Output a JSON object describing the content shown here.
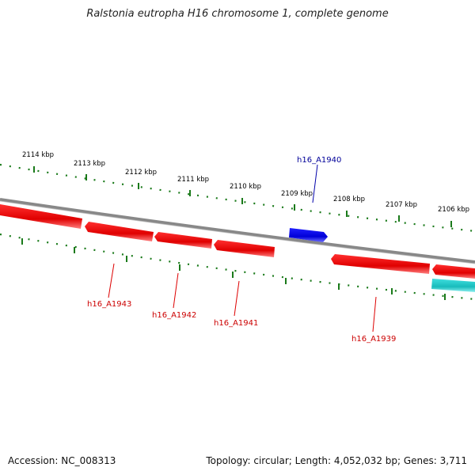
{
  "title": "Ralstonia eutropha H16 chromosome 1, complete genome",
  "footer": {
    "accession": "Accession: NC_008313",
    "summary": "Topology: circular; Length: 4,052,032 bp; Genes: 3,711"
  },
  "colors": {
    "backbone": "#8c8c8c",
    "ticks": "#1a7a1a",
    "forward_gene": "#0000ff",
    "reverse_gene": "#ff0000",
    "other_gene": "#20c8c8",
    "forward_label": "#000099",
    "reverse_label": "#cc0000"
  },
  "scale_ticks": [
    "2114 kbp",
    "2113 kbp",
    "2112 kbp",
    "2111 kbp",
    "2110 kbp",
    "2109 kbp",
    "2108 kbp",
    "2107 kbp",
    "2106 kbp"
  ],
  "gene_labels": [
    "h16_A1940",
    "h16_A1943",
    "h16_A1942",
    "h16_A1941",
    "h16_A1939"
  ]
}
